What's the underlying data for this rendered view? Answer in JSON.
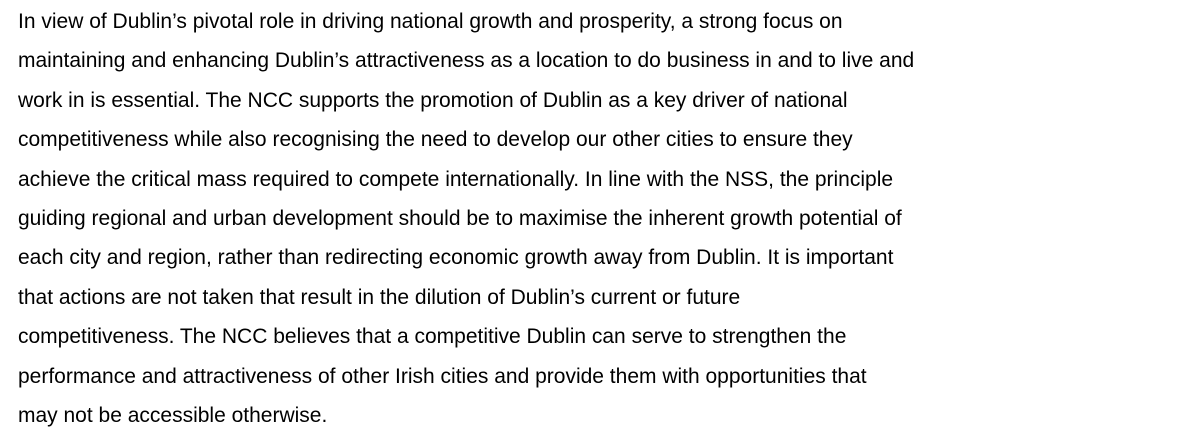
{
  "paragraph": {
    "lines": [
      "In view of Dublin’s pivotal role in driving national growth and prosperity, a strong focus on",
      "maintaining and enhancing Dublin’s attractiveness as a location to do business in and to live and",
      "work in is essential. The NCC supports the promotion of Dublin as a key driver of national",
      "competitiveness while also recognising the need to develop our other cities to ensure they",
      "achieve the critical mass required to compete internationally. In line with the NSS, the principle",
      "guiding regional and urban development should be to maximise the inherent growth potential of",
      "each city and region, rather than redirecting economic growth away from Dublin. It is important",
      "that actions are not taken that result in the dilution of Dublin’s current or future",
      "competitiveness. The NCC believes that a competitive Dublin can serve to strengthen the",
      "performance and attractiveness of other Irish cities and provide them with opportunities that",
      "may not be accessible otherwise."
    ]
  }
}
